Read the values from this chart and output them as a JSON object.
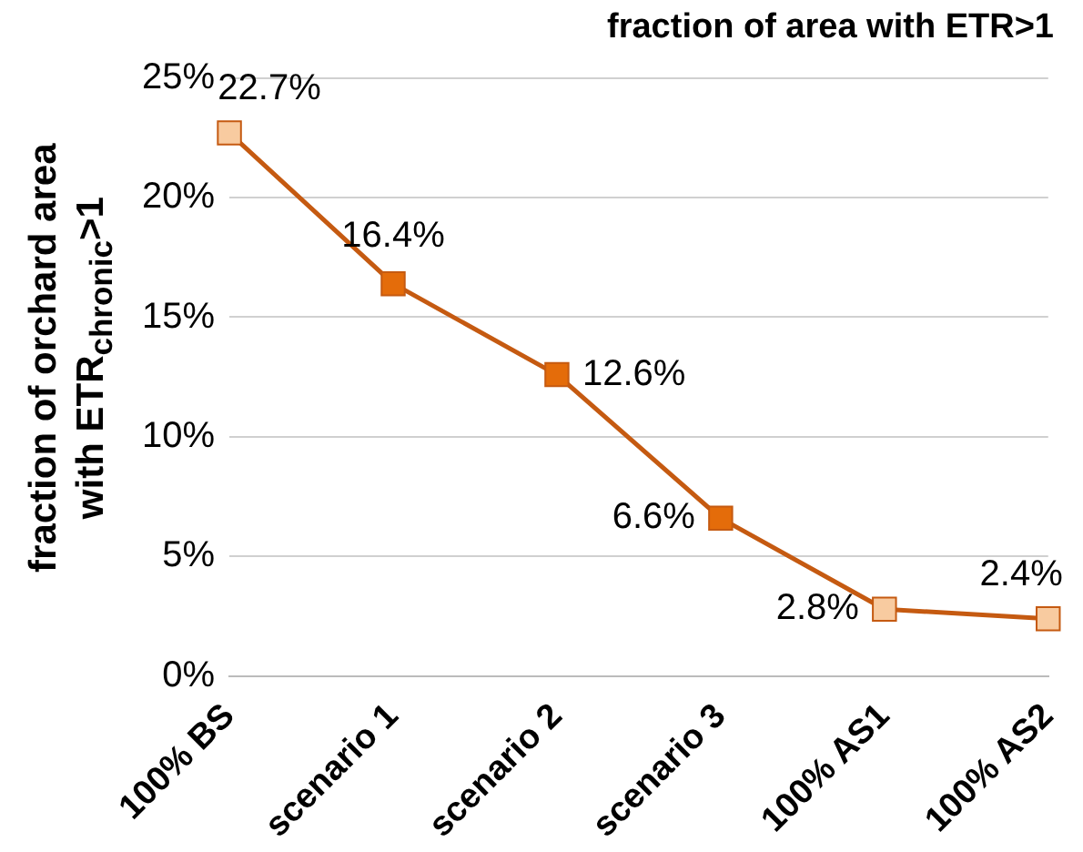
{
  "chart_data": {
    "type": "line",
    "title": "fraction of area with ETR>1",
    "ylabel": "fraction of orchard area with ETR$_{chronic}$>1",
    "categories": [
      "100% BS",
      "scenario 1",
      "scenario 2",
      "scenario 3",
      "100% AS1",
      "100% AS2"
    ],
    "series": [
      {
        "color": "#c55a11",
        "values": [
          22.7,
          16.4,
          12.6,
          6.6,
          2.8,
          2.4
        ],
        "colors": [
          "#f8cba0",
          "#e46c0a",
          "#e46c0a",
          "#e46c0a",
          "#f8cba0",
          "#f8cba0"
        ],
        "value_labels": [
          "22.7%",
          "16.4%",
          "12.6%",
          "6.6%",
          "2.8%",
          "2.4%"
        ]
      }
    ],
    "ylim": [
      0,
      25
    ],
    "yticks": [
      {
        "value": 0,
        "label": "0%"
      },
      {
        "value": 5,
        "label": "5%"
      },
      {
        "value": 10,
        "label": "10%"
      },
      {
        "value": 15,
        "label": "15%"
      },
      {
        "value": 20,
        "label": "20%"
      },
      {
        "value": 25,
        "label": "25%"
      }
    ],
    "grid": "y",
    "legend": false,
    "marker": "square",
    "line_style": "solid"
  }
}
